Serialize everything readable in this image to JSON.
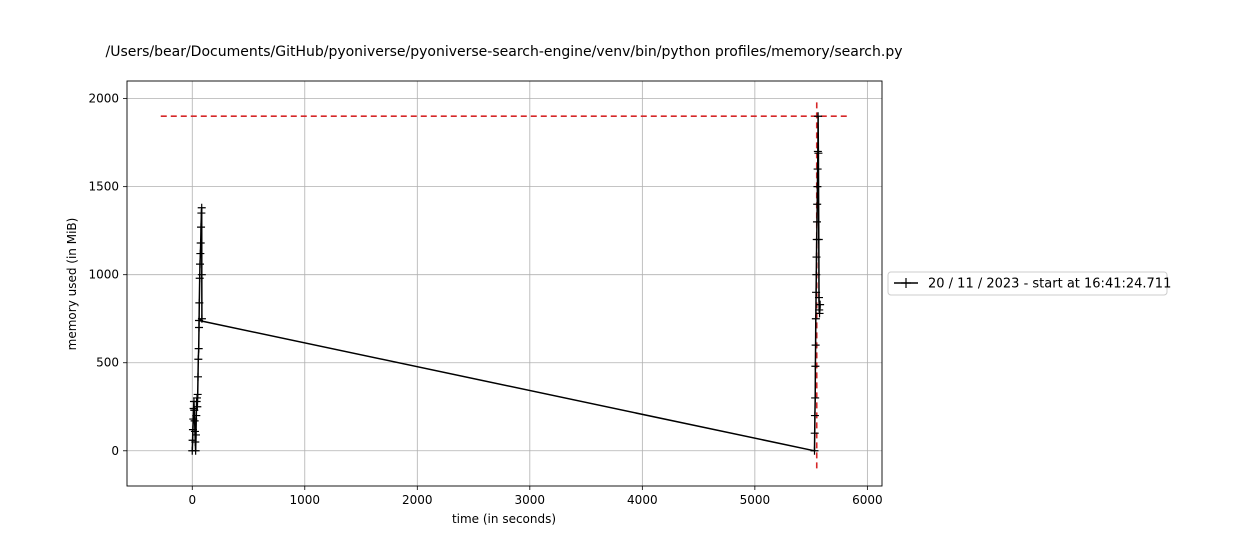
{
  "chart_data": {
    "type": "line",
    "title": "/Users/bear/Documents/GitHub/pyoniverse/pyoniverse-search-engine/venv/bin/python profiles/memory/search.py",
    "xlabel": "time (in seconds)",
    "ylabel": "memory used (in MiB)",
    "xlim": [
      -580,
      6130
    ],
    "ylim": [
      -200,
      2100
    ],
    "xticks": [
      0,
      1000,
      2000,
      3000,
      4000,
      5000,
      6000
    ],
    "yticks": [
      0,
      500,
      1000,
      1500,
      2000
    ],
    "grid": true,
    "legend_position": "outside-right",
    "series": [
      {
        "name": "20 / 11 / 2023 - start at 16:41:24.711",
        "color": "#000000",
        "marker": "+",
        "points": [
          [
            0,
            0
          ],
          [
            3,
            60
          ],
          [
            6,
            120
          ],
          [
            9,
            180
          ],
          [
            12,
            240
          ],
          [
            15,
            280
          ],
          [
            18,
            230
          ],
          [
            21,
            170
          ],
          [
            24,
            110
          ],
          [
            27,
            50
          ],
          [
            30,
            0
          ],
          [
            33,
            90
          ],
          [
            36,
            200
          ],
          [
            39,
            280
          ],
          [
            42,
            300
          ],
          [
            45,
            250
          ],
          [
            48,
            320
          ],
          [
            51,
            420
          ],
          [
            54,
            520
          ],
          [
            57,
            580
          ],
          [
            60,
            700
          ],
          [
            63,
            840
          ],
          [
            66,
            980
          ],
          [
            69,
            1060
          ],
          [
            72,
            1120
          ],
          [
            75,
            1180
          ],
          [
            78,
            1270
          ],
          [
            81,
            1350
          ],
          [
            84,
            1380
          ],
          [
            85,
            1000
          ],
          [
            86,
            750
          ],
          [
            60,
            740
          ],
          [
            5530,
            0
          ],
          [
            5532,
            100
          ],
          [
            5534,
            200
          ],
          [
            5536,
            300
          ],
          [
            5538,
            480
          ],
          [
            5540,
            600
          ],
          [
            5542,
            750
          ],
          [
            5544,
            900
          ],
          [
            5546,
            1000
          ],
          [
            5548,
            1100
          ],
          [
            5550,
            1200
          ],
          [
            5552,
            1300
          ],
          [
            5554,
            1400
          ],
          [
            5556,
            1500
          ],
          [
            5558,
            1600
          ],
          [
            5560,
            1700
          ],
          [
            5562,
            1900
          ],
          [
            5565,
            1690
          ],
          [
            5568,
            1200
          ],
          [
            5570,
            870
          ],
          [
            5572,
            800
          ],
          [
            5575,
            780
          ],
          [
            5580,
            830
          ]
        ]
      }
    ],
    "reference_lines": [
      {
        "orientation": "horizontal",
        "y": 1900,
        "x_from": -280,
        "x_to": 5830,
        "color": "#d62728",
        "style": "dashed"
      },
      {
        "orientation": "vertical",
        "x": 5550,
        "y_from": -100,
        "y_to": 2000,
        "color": "#d62728",
        "style": "dashed"
      }
    ]
  }
}
